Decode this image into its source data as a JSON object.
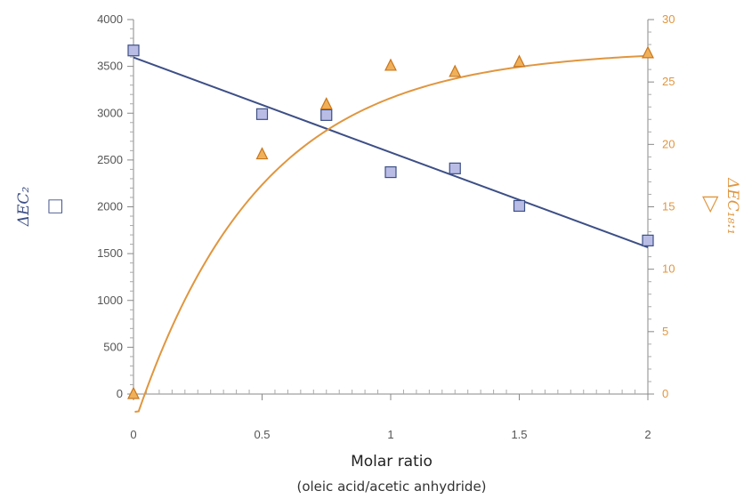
{
  "chart_data": {
    "type": "scatter",
    "xlabel": "Molar ratio",
    "xlabel_sub": "(oleic acid/acetic anhydride)",
    "xlim": [
      0,
      2
    ],
    "x_ticks": [
      0,
      0.5,
      1,
      1.5,
      2
    ],
    "x_tick_labels": [
      "0",
      "0.5",
      "1",
      "1.5",
      "2"
    ],
    "y_left": {
      "label": "ΔEC₂",
      "symbol": "□",
      "lim": [
        0,
        4000
      ],
      "ticks": [
        0,
        500,
        1000,
        1500,
        2000,
        2500,
        3000,
        3500,
        4000
      ],
      "tick_labels": [
        "0",
        "500",
        "1000",
        "1500",
        "2000",
        "2500",
        "3000",
        "3500",
        "4000"
      ],
      "color": "#3d4f86"
    },
    "y_right": {
      "label": "ΔEC₁₈:₁",
      "symbol": "▷",
      "lim": [
        0,
        30
      ],
      "ticks": [
        0,
        5,
        10,
        15,
        20,
        25,
        30
      ],
      "tick_labels": [
        "0",
        "5",
        "10",
        "15",
        "20",
        "25",
        "30"
      ],
      "color": "#e0963f"
    },
    "series": [
      {
        "name": "ΔEC₂",
        "axis": "left",
        "marker": "square",
        "x": [
          0,
          0.5,
          0.75,
          1.0,
          1.25,
          1.5,
          2.0
        ],
        "y": [
          3670,
          2990,
          2980,
          2370,
          2410,
          2010,
          1640
        ],
        "fit": "linear"
      },
      {
        "name": "ΔEC₁₈:₁",
        "axis": "right",
        "marker": "triangle",
        "x": [
          0,
          0.5,
          0.75,
          1.0,
          1.25,
          1.5,
          2.0
        ],
        "y": [
          0,
          19.2,
          23.2,
          26.3,
          25.8,
          26.6,
          27.3
        ],
        "fit": "exponential"
      }
    ],
    "grid": false,
    "legend": "none"
  }
}
